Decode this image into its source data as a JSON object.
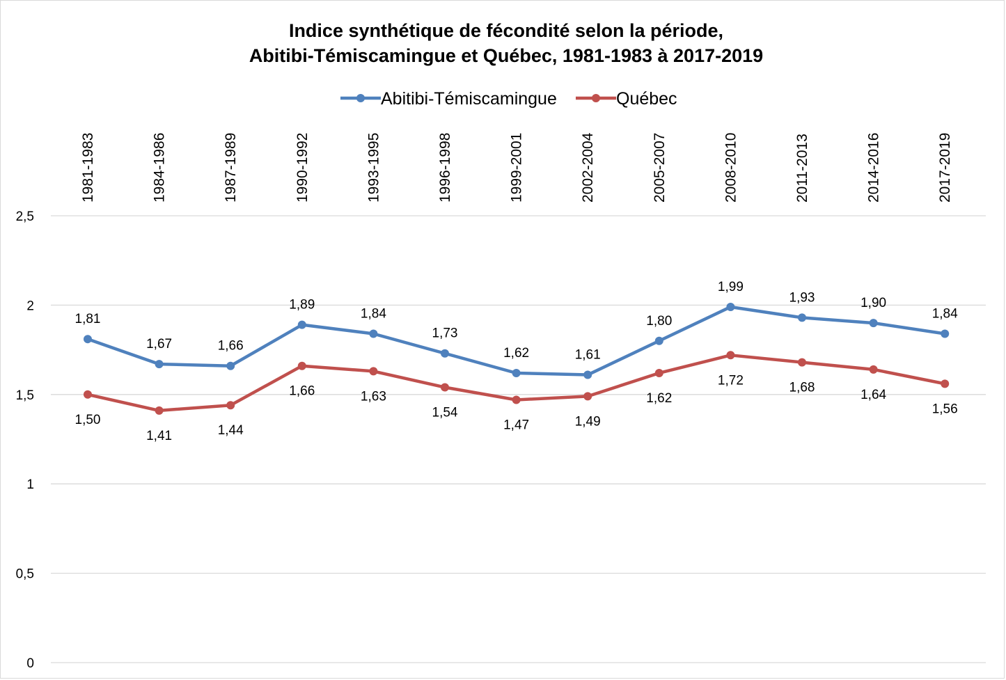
{
  "chart_data": {
    "type": "line",
    "title_lines": [
      "Indice synthétique de fécondité selon la période,",
      "Abitibi-Témiscamingue et Québec, 1981-1983 à 2017-2019"
    ],
    "categories": [
      "1981-1983",
      "1984-1986",
      "1987-1989",
      "1990-1992",
      "1993-1995",
      "1996-1998",
      "1999-2001",
      "2002-2004",
      "2005-2007",
      "2008-2010",
      "2011-2013",
      "2014-2016",
      "2017-2019"
    ],
    "series": [
      {
        "name": "Abitibi-Témiscamingue",
        "color": "#4f81bd",
        "values": [
          1.81,
          1.67,
          1.66,
          1.89,
          1.84,
          1.73,
          1.62,
          1.61,
          1.8,
          1.99,
          1.93,
          1.9,
          1.84
        ],
        "labels": [
          "1,81",
          "1,67",
          "1,66",
          "1,89",
          "1,84",
          "1,73",
          "1,62",
          "1,61",
          "1,80",
          "1,99",
          "1,93",
          "1,90",
          "1,84"
        ],
        "label_position": "above"
      },
      {
        "name": "Québec",
        "color": "#c0504d",
        "values": [
          1.5,
          1.41,
          1.44,
          1.66,
          1.63,
          1.54,
          1.47,
          1.49,
          1.62,
          1.72,
          1.68,
          1.64,
          1.56
        ],
        "labels": [
          "1,50",
          "1,41",
          "1,44",
          "1,66",
          "1,63",
          "1,54",
          "1,47",
          "1,49",
          "1,62",
          "1,72",
          "1,68",
          "1,64",
          "1,56"
        ],
        "label_position": "below"
      }
    ],
    "y_ticks": [
      {
        "value": 0,
        "label": "0"
      },
      {
        "value": 0.5,
        "label": "0,5"
      },
      {
        "value": 1,
        "label": "1"
      },
      {
        "value": 1.5,
        "label": "1,5"
      },
      {
        "value": 2,
        "label": "2"
      },
      {
        "value": 2.5,
        "label": "2,5"
      }
    ],
    "ylim": [
      0,
      2.5
    ],
    "grid": true,
    "legend_position": "top-center",
    "x_tick_position": "top-rotated"
  }
}
